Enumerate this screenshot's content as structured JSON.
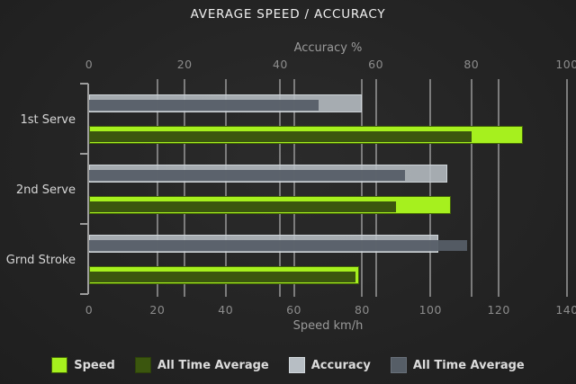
{
  "chart": {
    "title": "AVERAGE SPEED / ACCURACY",
    "top_axis": {
      "label": "Accuracy %",
      "ticks": [
        0,
        20,
        40,
        60,
        80,
        100
      ],
      "max": 100
    },
    "bottom_axis": {
      "label": "Speed km/h",
      "ticks": [
        0,
        20,
        40,
        60,
        80,
        100,
        120,
        140
      ],
      "max": 140
    }
  },
  "chart_data": {
    "type": "bar",
    "orientation": "horizontal",
    "title": "AVERAGE SPEED / ACCURACY",
    "categories": [
      "1st Serve",
      "2nd Serve",
      "Grnd Stroke"
    ],
    "axes": {
      "top": {
        "label": "Accuracy %",
        "range": [
          0,
          100
        ],
        "unit": "%"
      },
      "bottom": {
        "label": "Speed km/h",
        "range": [
          0,
          140
        ],
        "unit": "km/h"
      }
    },
    "series": [
      {
        "key": "speed",
        "name": "Speed",
        "axis": "speed",
        "role": "outer",
        "values": [
          127,
          106,
          79
        ],
        "color": "#a6f01e",
        "border": "#436408"
      },
      {
        "key": "speed-all-time-average",
        "name": "All Time Average",
        "axis": "speed",
        "role": "overlay",
        "values": [
          112,
          90,
          78
        ],
        "color": "#3b560e",
        "border": "#3b560e"
      },
      {
        "key": "accuracy",
        "name": "Accuracy",
        "axis": "accuracy",
        "role": "outer",
        "values": [
          57,
          75,
          73
        ],
        "color": "rgba(183,190,196,0.88)",
        "border": "rgba(213,219,223,0.85)"
      },
      {
        "key": "accuracy-all-time-average",
        "name": "All Time Average",
        "axis": "accuracy",
        "role": "overlay",
        "values": [
          48,
          66,
          79
        ],
        "color": "rgba(86,94,103,0.94)",
        "border": "rgba(86,94,103,0.94)"
      }
    ],
    "grid": true,
    "legend_position": "bottom"
  },
  "legend": {
    "items": [
      {
        "label": "Speed",
        "color": "#a6f01e",
        "border": "#436408"
      },
      {
        "label": "All Time Average",
        "color": "#3b560e",
        "border": "#2c400a"
      },
      {
        "label": "Accuracy",
        "color": "#b7bec4",
        "border": "#d0d6da"
      },
      {
        "label": "All Time Average",
        "color": "#565e67",
        "border": "#687079"
      }
    ]
  },
  "colors": {
    "background_center": "#2b2b2b",
    "background_edge": "#161616",
    "grid": "#7c7c7c",
    "axis": "#9c9c9c",
    "tick_label": "#8c8c8c",
    "axis_title": "#9a9a9a",
    "category_label": "#d6d6d6",
    "legend_text": "#dcdcdc",
    "title_text": "#f0f0f0"
  }
}
